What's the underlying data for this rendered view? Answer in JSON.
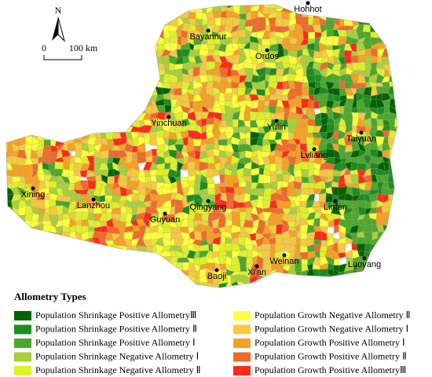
{
  "map": {
    "north_label": "N",
    "scale": {
      "start": "0",
      "end": "100 km"
    },
    "cities": [
      "Hohhot",
      "Bayannur",
      "Ordos",
      "Yinchuan",
      "Yulin",
      "Taiyuan",
      "Lvliang",
      "Xining",
      "Lanzhou",
      "Guyuan",
      "Qingyang",
      "Linfen",
      "Weinan",
      "Xi'an",
      "Baoji",
      "Luoyang"
    ],
    "legend": {
      "title": "Allometry Types",
      "items": [
        {
          "label": "Population Shrinkage Positive AllometryⅢ",
          "color": "#006400"
        },
        {
          "label": "Population Shrinkage Positive Allometry Ⅱ",
          "color": "#1f8c1f"
        },
        {
          "label": "Population Shrinkage Positive Allometry Ⅰ",
          "color": "#4ea62e"
        },
        {
          "label": "Population Shrinkage Negative Allometry Ⅰ",
          "color": "#a8cf3c"
        },
        {
          "label": "Population Shrinkage Negative Allometry Ⅱ",
          "color": "#def02a"
        },
        {
          "label": "Population Growth Negative Allometry Ⅱ",
          "color": "#ffff3a"
        },
        {
          "label": "Population Growth Negative Allometry Ⅰ",
          "color": "#f5c940"
        },
        {
          "label": "Population Growth Positive Allometry Ⅰ",
          "color": "#f5a124"
        },
        {
          "label": "Population Growth Positive Allometry Ⅱ",
          "color": "#f06a2c"
        },
        {
          "label": "Population Growth Positive AllometryⅢ",
          "color": "#ff2a18"
        }
      ]
    }
  }
}
